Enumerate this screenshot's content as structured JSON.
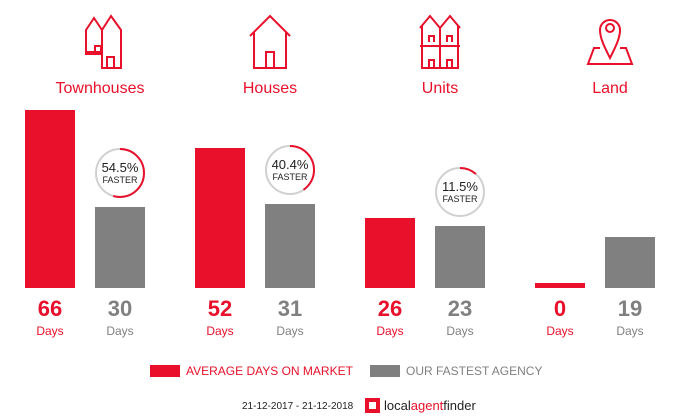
{
  "colors": {
    "red": "#e8102b",
    "grey": "#808080",
    "ring": "#d0d0d0"
  },
  "categories": [
    {
      "label": "Townhouses",
      "icon": "townhouse-icon"
    },
    {
      "label": "Houses",
      "icon": "house-icon"
    },
    {
      "label": "Units",
      "icon": "units-icon"
    },
    {
      "label": "Land",
      "icon": "land-pin-icon"
    }
  ],
  "chart_data": {
    "type": "bar",
    "categories": [
      "Townhouses",
      "Houses",
      "Units",
      "Land"
    ],
    "series": [
      {
        "name": "AVERAGE DAYS ON MARKET",
        "values": [
          66,
          52,
          26,
          0
        ]
      },
      {
        "name": "OUR FASTEST AGENCY",
        "values": [
          30,
          31,
          23,
          19
        ]
      }
    ],
    "faster": [
      "54.5%",
      "40.4%",
      "11.5%",
      null
    ],
    "faster_fraction": [
      0.545,
      0.404,
      0.115,
      null
    ],
    "faster_label": "FASTER",
    "unit_label": "Days",
    "ylim": [
      0,
      66
    ]
  },
  "legend": {
    "avg": "AVERAGE DAYS ON MARKET",
    "fast": "OUR FASTEST AGENCY"
  },
  "footer": {
    "date_range": "21-12-2017 - 21-12-2018",
    "logo_local": "local",
    "logo_agent": "agent",
    "logo_finder": "finder"
  }
}
